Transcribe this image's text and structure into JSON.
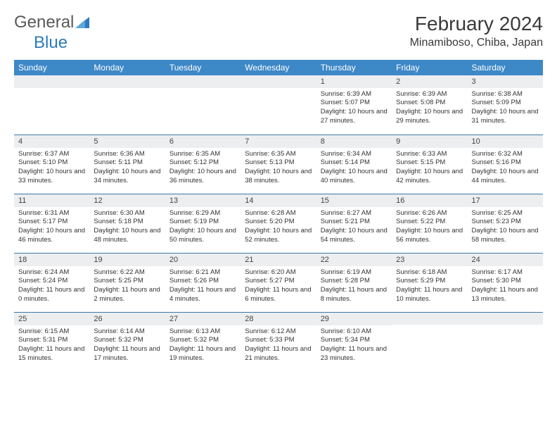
{
  "logo": {
    "text1": "General",
    "text2": "Blue"
  },
  "title": "February 2024",
  "location": "Minamiboso, Chiba, Japan",
  "colors": {
    "header_bg": "#3d88c7",
    "header_text": "#ffffff",
    "daynum_bg": "#eceef0",
    "row_border": "#3d78a8",
    "text": "#333333",
    "logo_gray": "#5a5a5a",
    "logo_blue": "#2d7bbd"
  },
  "weekdays": [
    "Sunday",
    "Monday",
    "Tuesday",
    "Wednesday",
    "Thursday",
    "Friday",
    "Saturday"
  ],
  "weeks": [
    [
      {
        "n": "",
        "sr": "",
        "ss": "",
        "dl": ""
      },
      {
        "n": "",
        "sr": "",
        "ss": "",
        "dl": ""
      },
      {
        "n": "",
        "sr": "",
        "ss": "",
        "dl": ""
      },
      {
        "n": "",
        "sr": "",
        "ss": "",
        "dl": ""
      },
      {
        "n": "1",
        "sr": "Sunrise: 6:39 AM",
        "ss": "Sunset: 5:07 PM",
        "dl": "Daylight: 10 hours and 27 minutes."
      },
      {
        "n": "2",
        "sr": "Sunrise: 6:39 AM",
        "ss": "Sunset: 5:08 PM",
        "dl": "Daylight: 10 hours and 29 minutes."
      },
      {
        "n": "3",
        "sr": "Sunrise: 6:38 AM",
        "ss": "Sunset: 5:09 PM",
        "dl": "Daylight: 10 hours and 31 minutes."
      }
    ],
    [
      {
        "n": "4",
        "sr": "Sunrise: 6:37 AM",
        "ss": "Sunset: 5:10 PM",
        "dl": "Daylight: 10 hours and 33 minutes."
      },
      {
        "n": "5",
        "sr": "Sunrise: 6:36 AM",
        "ss": "Sunset: 5:11 PM",
        "dl": "Daylight: 10 hours and 34 minutes."
      },
      {
        "n": "6",
        "sr": "Sunrise: 6:35 AM",
        "ss": "Sunset: 5:12 PM",
        "dl": "Daylight: 10 hours and 36 minutes."
      },
      {
        "n": "7",
        "sr": "Sunrise: 6:35 AM",
        "ss": "Sunset: 5:13 PM",
        "dl": "Daylight: 10 hours and 38 minutes."
      },
      {
        "n": "8",
        "sr": "Sunrise: 6:34 AM",
        "ss": "Sunset: 5:14 PM",
        "dl": "Daylight: 10 hours and 40 minutes."
      },
      {
        "n": "9",
        "sr": "Sunrise: 6:33 AM",
        "ss": "Sunset: 5:15 PM",
        "dl": "Daylight: 10 hours and 42 minutes."
      },
      {
        "n": "10",
        "sr": "Sunrise: 6:32 AM",
        "ss": "Sunset: 5:16 PM",
        "dl": "Daylight: 10 hours and 44 minutes."
      }
    ],
    [
      {
        "n": "11",
        "sr": "Sunrise: 6:31 AM",
        "ss": "Sunset: 5:17 PM",
        "dl": "Daylight: 10 hours and 46 minutes."
      },
      {
        "n": "12",
        "sr": "Sunrise: 6:30 AM",
        "ss": "Sunset: 5:18 PM",
        "dl": "Daylight: 10 hours and 48 minutes."
      },
      {
        "n": "13",
        "sr": "Sunrise: 6:29 AM",
        "ss": "Sunset: 5:19 PM",
        "dl": "Daylight: 10 hours and 50 minutes."
      },
      {
        "n": "14",
        "sr": "Sunrise: 6:28 AM",
        "ss": "Sunset: 5:20 PM",
        "dl": "Daylight: 10 hours and 52 minutes."
      },
      {
        "n": "15",
        "sr": "Sunrise: 6:27 AM",
        "ss": "Sunset: 5:21 PM",
        "dl": "Daylight: 10 hours and 54 minutes."
      },
      {
        "n": "16",
        "sr": "Sunrise: 6:26 AM",
        "ss": "Sunset: 5:22 PM",
        "dl": "Daylight: 10 hours and 56 minutes."
      },
      {
        "n": "17",
        "sr": "Sunrise: 6:25 AM",
        "ss": "Sunset: 5:23 PM",
        "dl": "Daylight: 10 hours and 58 minutes."
      }
    ],
    [
      {
        "n": "18",
        "sr": "Sunrise: 6:24 AM",
        "ss": "Sunset: 5:24 PM",
        "dl": "Daylight: 11 hours and 0 minutes."
      },
      {
        "n": "19",
        "sr": "Sunrise: 6:22 AM",
        "ss": "Sunset: 5:25 PM",
        "dl": "Daylight: 11 hours and 2 minutes."
      },
      {
        "n": "20",
        "sr": "Sunrise: 6:21 AM",
        "ss": "Sunset: 5:26 PM",
        "dl": "Daylight: 11 hours and 4 minutes."
      },
      {
        "n": "21",
        "sr": "Sunrise: 6:20 AM",
        "ss": "Sunset: 5:27 PM",
        "dl": "Daylight: 11 hours and 6 minutes."
      },
      {
        "n": "22",
        "sr": "Sunrise: 6:19 AM",
        "ss": "Sunset: 5:28 PM",
        "dl": "Daylight: 11 hours and 8 minutes."
      },
      {
        "n": "23",
        "sr": "Sunrise: 6:18 AM",
        "ss": "Sunset: 5:29 PM",
        "dl": "Daylight: 11 hours and 10 minutes."
      },
      {
        "n": "24",
        "sr": "Sunrise: 6:17 AM",
        "ss": "Sunset: 5:30 PM",
        "dl": "Daylight: 11 hours and 13 minutes."
      }
    ],
    [
      {
        "n": "25",
        "sr": "Sunrise: 6:15 AM",
        "ss": "Sunset: 5:31 PM",
        "dl": "Daylight: 11 hours and 15 minutes."
      },
      {
        "n": "26",
        "sr": "Sunrise: 6:14 AM",
        "ss": "Sunset: 5:32 PM",
        "dl": "Daylight: 11 hours and 17 minutes."
      },
      {
        "n": "27",
        "sr": "Sunrise: 6:13 AM",
        "ss": "Sunset: 5:32 PM",
        "dl": "Daylight: 11 hours and 19 minutes."
      },
      {
        "n": "28",
        "sr": "Sunrise: 6:12 AM",
        "ss": "Sunset: 5:33 PM",
        "dl": "Daylight: 11 hours and 21 minutes."
      },
      {
        "n": "29",
        "sr": "Sunrise: 6:10 AM",
        "ss": "Sunset: 5:34 PM",
        "dl": "Daylight: 11 hours and 23 minutes."
      },
      {
        "n": "",
        "sr": "",
        "ss": "",
        "dl": ""
      },
      {
        "n": "",
        "sr": "",
        "ss": "",
        "dl": ""
      }
    ]
  ]
}
